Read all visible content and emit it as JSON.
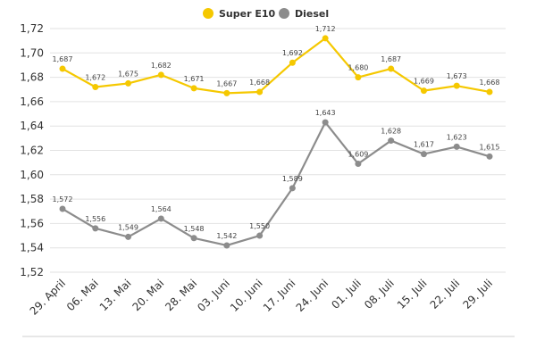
{
  "chart_data": {
    "type": "line",
    "title": "",
    "xlabel": "",
    "ylabel": "",
    "ylim": [
      1.52,
      1.72
    ],
    "yticks": [
      "1,52",
      "1,54",
      "1,56",
      "1,58",
      "1,60",
      "1,62",
      "1,64",
      "1,66",
      "1,68",
      "1,70",
      "1,72"
    ],
    "grid": true,
    "legend_position": "top-center",
    "categories": [
      "29. April",
      "06. Mai",
      "13. Mai",
      "20. Mai",
      "28. Mai",
      "03. Juni",
      "10. Juni",
      "17. Juni",
      "24. Juni",
      "01. Juli",
      "08. Juli",
      "15. Juli",
      "22. Juli",
      "29. Juli"
    ],
    "series": [
      {
        "name": "Super E10",
        "color": "#F5C800",
        "values": [
          1.687,
          1.672,
          1.675,
          1.682,
          1.671,
          1.667,
          1.668,
          1.692,
          1.712,
          1.68,
          1.687,
          1.669,
          1.673,
          1.668
        ],
        "labels": [
          "1,687",
          "1,672",
          "1,675",
          "1,682",
          "1,671",
          "1,667",
          "1,668",
          "1,692",
          "1,712",
          "1,680",
          "1,687",
          "1,669",
          "1,673",
          "1,668"
        ]
      },
      {
        "name": "Diesel",
        "color": "#8C8C8C",
        "values": [
          1.572,
          1.556,
          1.549,
          1.564,
          1.548,
          1.542,
          1.55,
          1.589,
          1.643,
          1.609,
          1.628,
          1.617,
          1.623,
          1.615
        ],
        "labels": [
          "1,572",
          "1,556",
          "1,549",
          "1,564",
          "1,548",
          "1,542",
          "1,550",
          "1,589",
          "1,643",
          "1,609",
          "1,628",
          "1,617",
          "1,623",
          "1,615"
        ]
      }
    ]
  }
}
